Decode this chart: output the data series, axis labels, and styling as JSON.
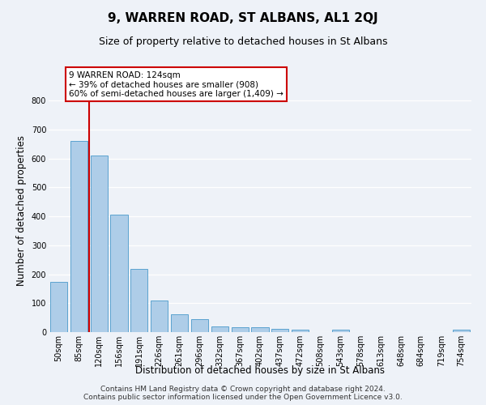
{
  "title": "9, WARREN ROAD, ST ALBANS, AL1 2QJ",
  "subtitle": "Size of property relative to detached houses in St Albans",
  "xlabel": "Distribution of detached houses by size in St Albans",
  "ylabel": "Number of detached properties",
  "categories": [
    "50sqm",
    "85sqm",
    "120sqm",
    "156sqm",
    "191sqm",
    "226sqm",
    "261sqm",
    "296sqm",
    "332sqm",
    "367sqm",
    "402sqm",
    "437sqm",
    "472sqm",
    "508sqm",
    "543sqm",
    "578sqm",
    "613sqm",
    "648sqm",
    "684sqm",
    "719sqm",
    "754sqm"
  ],
  "values": [
    175,
    660,
    610,
    405,
    218,
    110,
    62,
    46,
    20,
    17,
    16,
    10,
    8,
    0,
    8,
    0,
    0,
    0,
    0,
    0,
    8
  ],
  "bar_color": "#aecde8",
  "bar_edge_color": "#5ba3d0",
  "red_line_x": 1.5,
  "annotation_text": "9 WARREN ROAD: 124sqm\n← 39% of detached houses are smaller (908)\n60% of semi-detached houses are larger (1,409) →",
  "annotation_box_color": "#ffffff",
  "annotation_box_edge_color": "#cc0000",
  "red_line_color": "#cc0000",
  "ylim": [
    0,
    840
  ],
  "yticks": [
    0,
    100,
    200,
    300,
    400,
    500,
    600,
    700,
    800
  ],
  "background_color": "#eef2f8",
  "grid_color": "#ffffff",
  "title_fontsize": 11,
  "subtitle_fontsize": 9,
  "axis_label_fontsize": 8.5,
  "tick_fontsize": 7,
  "annotation_fontsize": 7.5,
  "footer_fontsize": 6.5,
  "footer": "Contains HM Land Registry data © Crown copyright and database right 2024.\nContains public sector information licensed under the Open Government Licence v3.0."
}
